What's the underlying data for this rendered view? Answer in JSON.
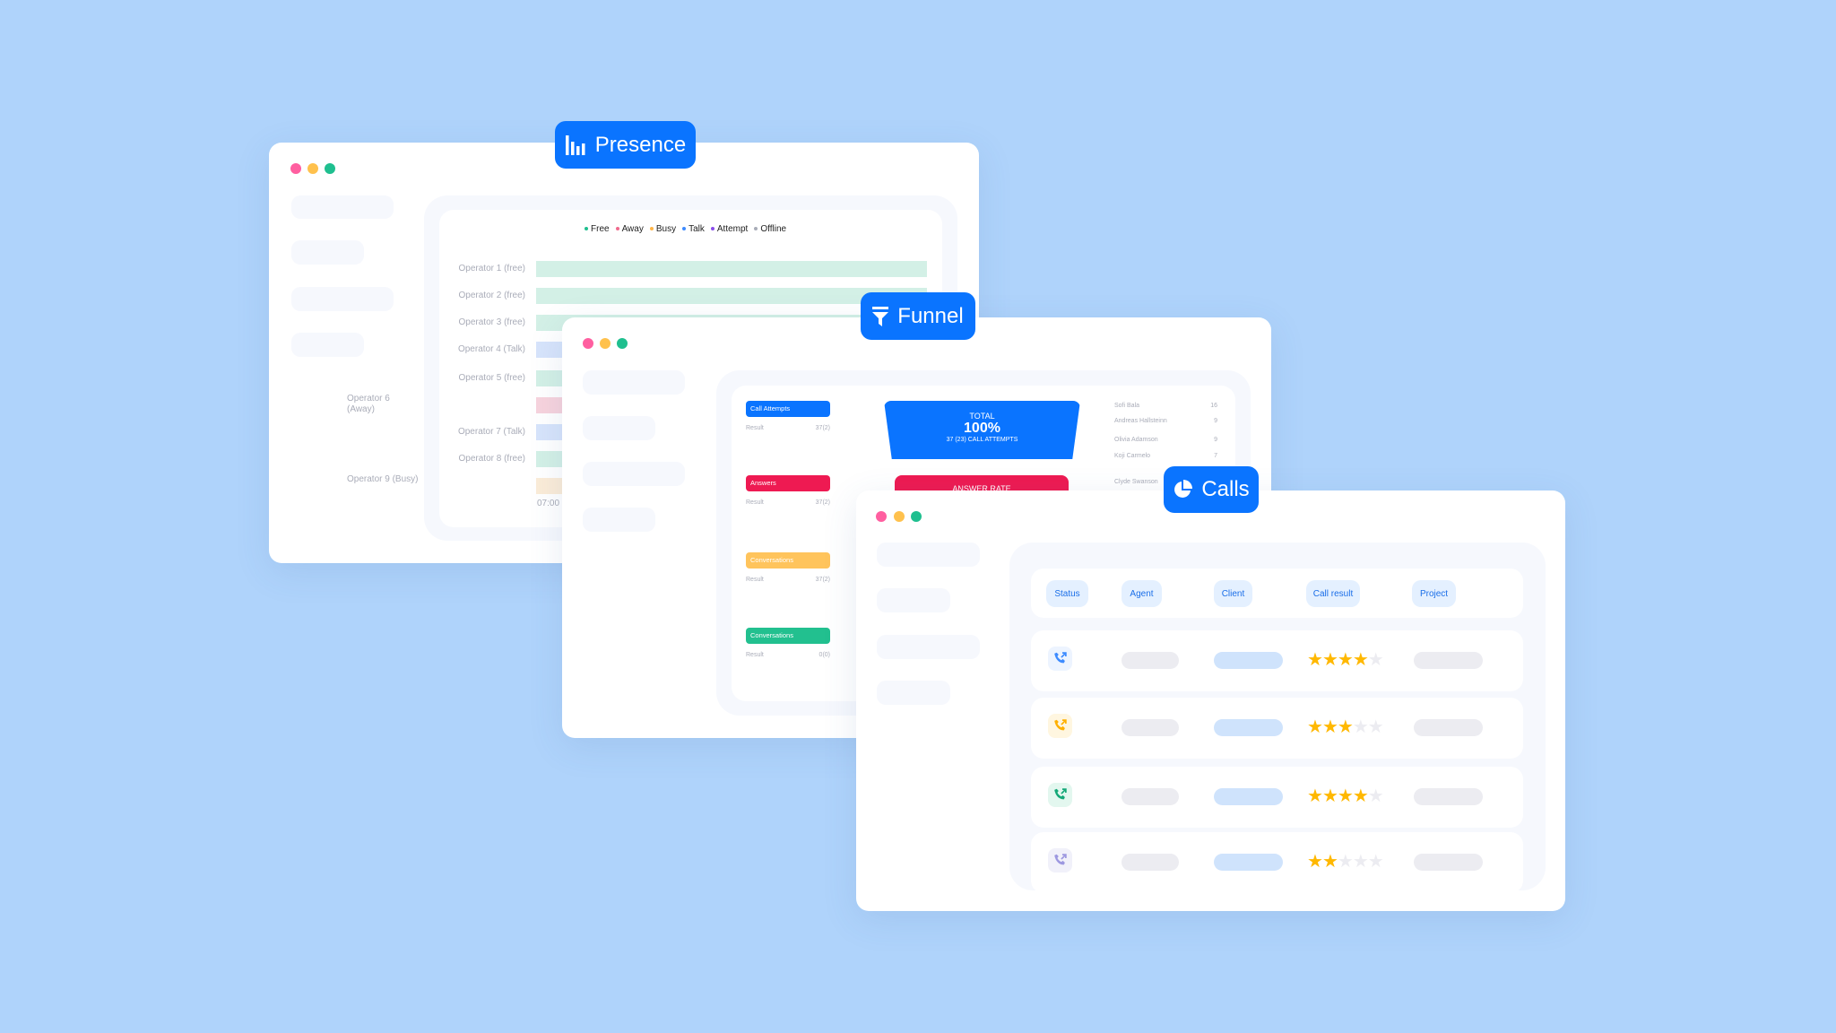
{
  "presence": {
    "badge_label": "Presence",
    "badge_icon": "bar-chart-icon",
    "legend": [
      {
        "label": "Free",
        "color": "#1fbf8f"
      },
      {
        "label": "Away",
        "color": "#f06a8d"
      },
      {
        "label": "Busy",
        "color": "#ffb547"
      },
      {
        "label": "Talk",
        "color": "#3d8bff"
      },
      {
        "label": "Attempt",
        "color": "#8a4dea"
      },
      {
        "label": "Offline",
        "color": "#a9acb8"
      }
    ],
    "operators": [
      {
        "label": "Operator 1 (free)",
        "color": "#d3f0e6"
      },
      {
        "label": "Operator 2 (free)",
        "color": "#d3f0e6"
      },
      {
        "label": "Operator 3 (free)",
        "color": "#d3f0e6"
      },
      {
        "label": "Operator 4 (Talk)",
        "color": "#d7e4fb"
      },
      {
        "label": "Operator 5 (free)",
        "color": "#d3f0e6"
      },
      {
        "label": "Operator 6 (Away)",
        "color": "#f7d3dd"
      },
      {
        "label": "Operator 7 (Talk)",
        "color": "#d7e4fb"
      },
      {
        "label": "Operator 8 (free)",
        "color": "#d3f0e6"
      },
      {
        "label": "Operator 9 (Busy)",
        "color": "#fbecd8"
      }
    ],
    "time_tick": "07:00"
  },
  "funnel": {
    "badge_label": "Funnel",
    "badge_icon": "funnel-icon",
    "stages": [
      {
        "label": "Call Attempts",
        "color": "#0a74ff",
        "result_label": "Result",
        "result": "37(2)"
      },
      {
        "label": "Answers",
        "color": "#ee1a52",
        "result_label": "Result",
        "result": "37(2)"
      },
      {
        "label": "Conversations",
        "color": "#ffc45c",
        "result_label": "Result",
        "result": "37(2)"
      },
      {
        "label": "Conversations",
        "color": "#22c08f",
        "result_label": "Result",
        "result": "0(0)"
      }
    ],
    "total": {
      "title": "TOTAL",
      "percent": "100%",
      "subtitle": "37 (23) CALL ATTEMPTS"
    },
    "answer_rate_label": "ANSWER RATE",
    "agents": [
      {
        "name": "Sofi Bala",
        "value": "16"
      },
      {
        "name": "Andreas Hallsteinn",
        "value": "9"
      },
      {
        "name": "Olivia Adamson",
        "value": "9"
      },
      {
        "name": "Koji Carmelo",
        "value": "7"
      },
      {
        "name": "Clyde Swanson",
        "value": ""
      }
    ]
  },
  "calls": {
    "badge_label": "Calls",
    "badge_icon": "pie-chart-icon",
    "columns": [
      "Status",
      "Agent",
      "Client",
      "Call result",
      "Project"
    ],
    "rows": [
      {
        "status_color": "#3d8bff",
        "status_bg": "#edf4ff",
        "rating": 4
      },
      {
        "status_color": "#ffb000",
        "status_bg": "#fff6e0",
        "rating": 3
      },
      {
        "status_color": "#14a878",
        "status_bg": "#e3f7ef",
        "rating": 4
      },
      {
        "status_color": "#9d98e0",
        "status_bg": "#f1f1fa",
        "rating": 2
      }
    ],
    "max_rating": 5
  },
  "colors": {
    "background": "#afd3fb",
    "accent": "#0a74ff",
    "star": "#ffb800",
    "star_empty": "#ececf1"
  }
}
